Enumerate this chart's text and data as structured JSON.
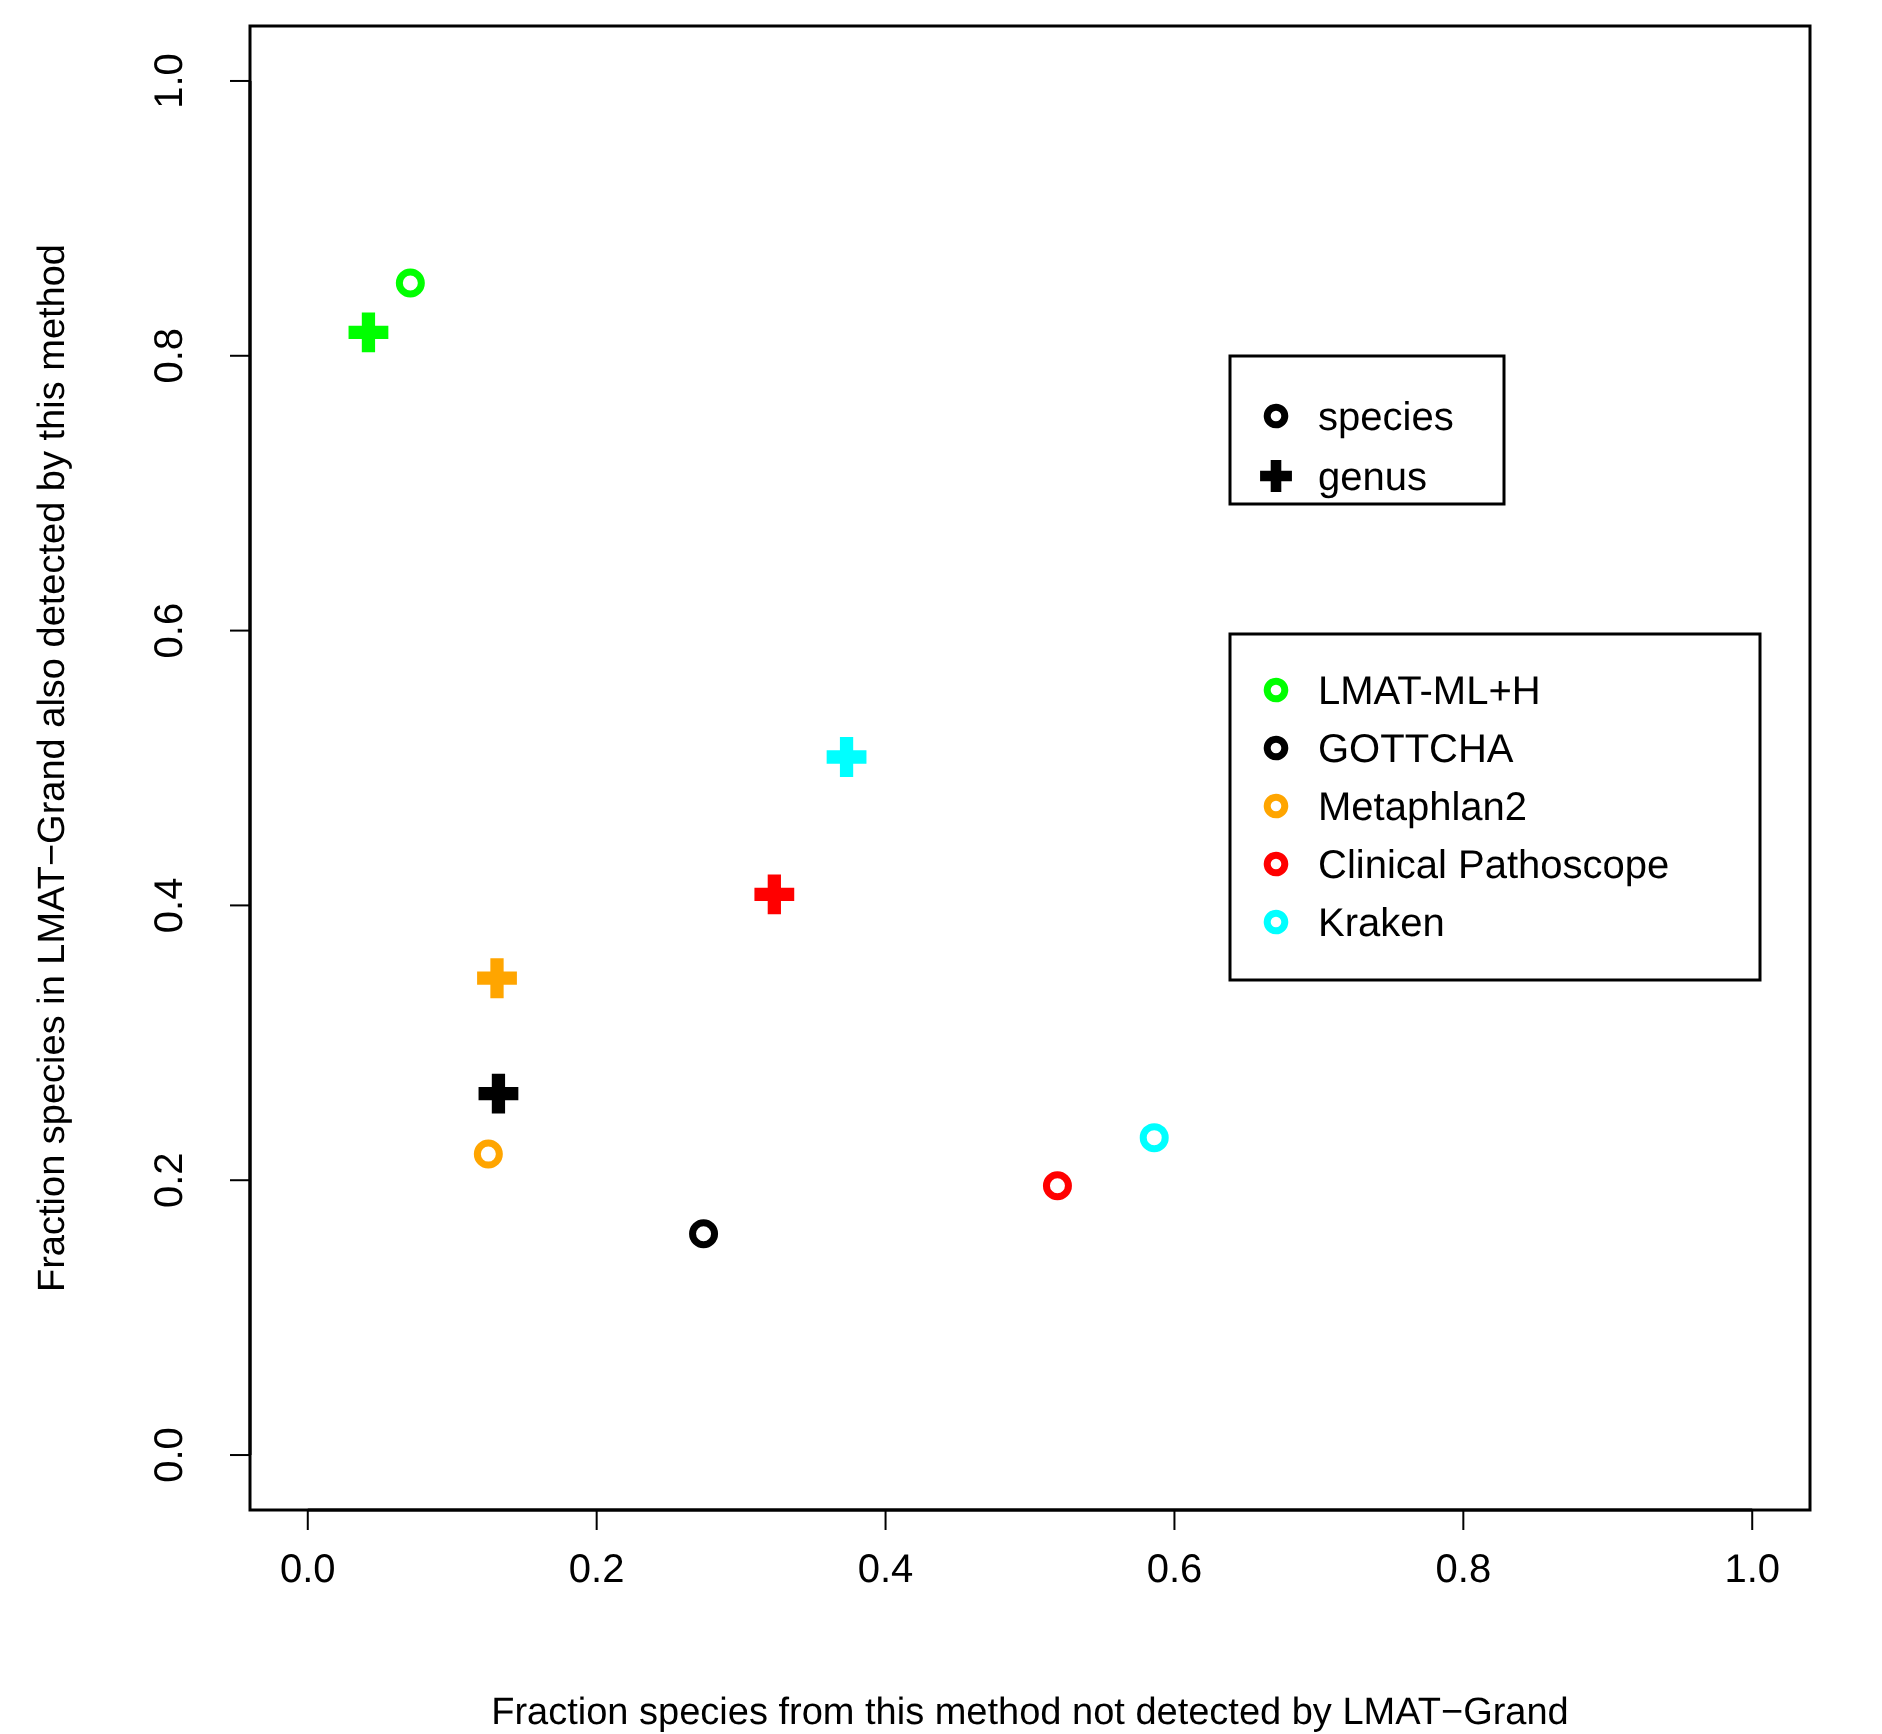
{
  "chart_data": {
    "type": "scatter",
    "xlabel": "Fraction species from this method not detected by LMAT−Grand",
    "ylabel": "Fraction species in LMAT−Grand also detected by this method",
    "xlim": [
      -0.04,
      1.04
    ],
    "ylim": [
      -0.04,
      1.04
    ],
    "xticks": [
      {
        "value": 0,
        "label": "0.0"
      },
      {
        "value": 0.2,
        "label": "0.2"
      },
      {
        "value": 0.4,
        "label": "0.4"
      },
      {
        "value": 0.6,
        "label": "0.6"
      },
      {
        "value": 0.8,
        "label": "0.8"
      },
      {
        "value": 1,
        "label": "1.0"
      }
    ],
    "yticks": [
      {
        "value": 0,
        "label": "0.0"
      },
      {
        "value": 0.2,
        "label": "0.2"
      },
      {
        "value": 0.4,
        "label": "0.4"
      },
      {
        "value": 0.6,
        "label": "0.6"
      },
      {
        "value": 0.8,
        "label": "0.8"
      },
      {
        "value": 1,
        "label": "1.0"
      }
    ],
    "grid": false,
    "legend": "right",
    "annotations": [
      "species",
      "genus"
    ],
    "series": [
      {
        "name": "LMAT-ML+H",
        "color": "#00ff00",
        "marker": "circle",
        "x": [
          0.071
        ],
        "values": [
          0.853
        ]
      },
      {
        "name": "GOTTCHA",
        "color": "#000000",
        "marker": "circle",
        "x": [
          0.274
        ],
        "values": [
          0.161
        ]
      },
      {
        "name": "Metaphlan2",
        "color": "#ffa500",
        "marker": "circle",
        "x": [
          0.125
        ],
        "values": [
          0.219
        ]
      },
      {
        "name": "Clinical Pathoscope",
        "color": "#ff0000",
        "marker": "circle",
        "x": [
          0.519
        ],
        "values": [
          0.196
        ]
      },
      {
        "name": "Kraken",
        "color": "#00ffff",
        "marker": "circle",
        "x": [
          0.586
        ],
        "values": [
          0.231
        ]
      },
      {
        "color": "#00ff00",
        "marker": "cross",
        "x": [
          0.042
        ],
        "values": [
          0.817
        ]
      },
      {
        "color": "#000000",
        "marker": "cross",
        "x": [
          0.132
        ],
        "values": [
          0.263
        ]
      },
      {
        "color": "#ffa500",
        "marker": "cross",
        "x": [
          0.131
        ],
        "values": [
          0.347
        ]
      },
      {
        "color": "#ff0000",
        "marker": "cross",
        "x": [
          0.323
        ],
        "values": [
          0.408
        ]
      },
      {
        "color": "#00ffff",
        "marker": "cross",
        "x": [
          0.373
        ],
        "values": [
          0.508
        ]
      }
    ]
  }
}
